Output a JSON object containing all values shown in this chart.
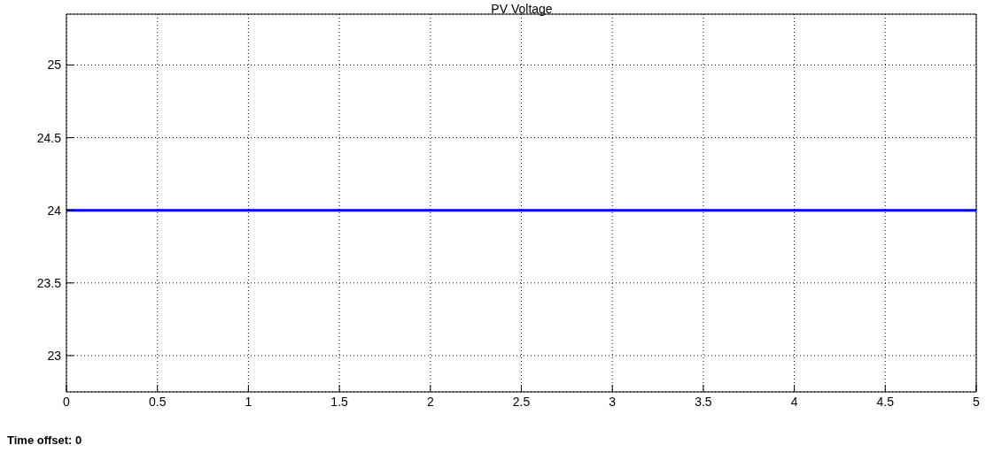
{
  "chart_data": {
    "type": "line",
    "title": "PV Voltage",
    "x": [
      0,
      5
    ],
    "series": [
      {
        "color": "#0000ff",
        "values": [
          24,
          24
        ]
      }
    ],
    "xlim": [
      0,
      5
    ],
    "xticks": [
      0,
      0.5,
      1,
      1.5,
      2,
      2.5,
      3,
      3.5,
      4,
      4.5,
      5
    ],
    "ylim": [
      22.75,
      25.35
    ],
    "yticks": [
      23,
      23.5,
      24,
      24.5,
      25
    ],
    "grid": true,
    "marker": "none",
    "line_style": "solid",
    "annotations": [
      "Time offset:  0"
    ]
  }
}
